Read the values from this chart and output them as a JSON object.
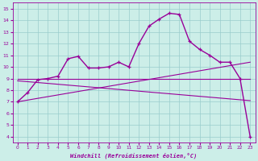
{
  "xlabel": "Windchill (Refroidissement éolien,°C)",
  "bg_color": "#cceee8",
  "line_color": "#990099",
  "grid_color": "#99cccc",
  "xlim": [
    -0.5,
    23.5
  ],
  "ylim": [
    3.5,
    15.5
  ],
  "xticks": [
    0,
    1,
    2,
    3,
    4,
    5,
    6,
    7,
    8,
    9,
    10,
    11,
    12,
    13,
    14,
    15,
    16,
    17,
    18,
    19,
    20,
    21,
    22,
    23
  ],
  "yticks": [
    4,
    5,
    6,
    7,
    8,
    9,
    10,
    11,
    12,
    13,
    14,
    15
  ],
  "main_x": [
    0,
    1,
    2,
    3,
    4,
    5,
    6,
    7,
    8,
    9,
    10,
    11,
    12,
    13,
    14,
    15,
    16,
    17,
    18,
    19,
    20,
    21,
    22,
    23
  ],
  "main_y": [
    7.0,
    7.8,
    8.9,
    9.0,
    9.2,
    10.7,
    10.9,
    9.9,
    9.9,
    10.0,
    10.4,
    10.0,
    12.0,
    13.5,
    14.1,
    14.6,
    14.5,
    12.2,
    11.5,
    11.0,
    10.4,
    10.4,
    9.0,
    4.0
  ],
  "trend1_x": [
    0,
    23
  ],
  "trend1_y": [
    9.0,
    9.0
  ],
  "trend2_x": [
    0,
    23
  ],
  "trend2_y": [
    8.8,
    7.1
  ],
  "trend3_x": [
    0,
    23
  ],
  "trend3_y": [
    7.0,
    10.4
  ]
}
